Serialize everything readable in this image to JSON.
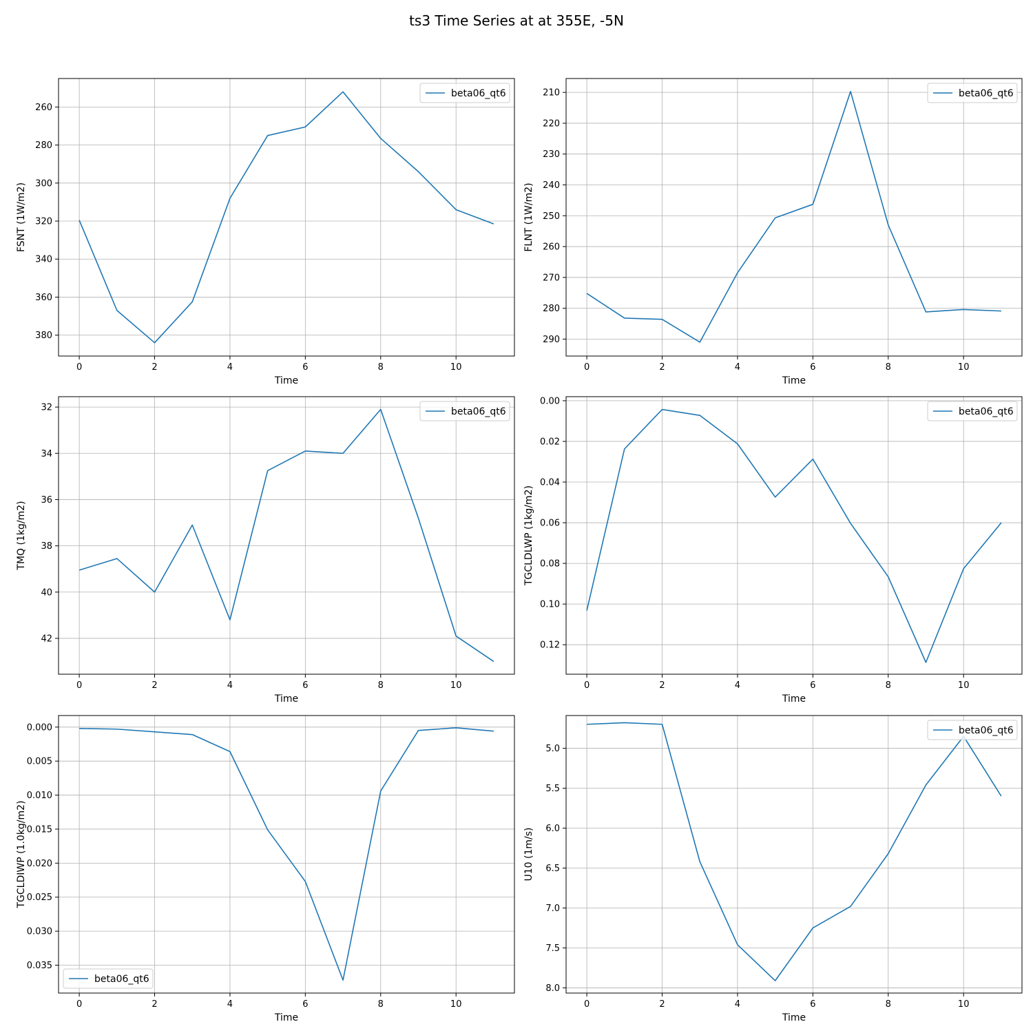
{
  "figure": {
    "suptitle": "ts3 Time Series at at 355E, -5N",
    "series_color": "#1f77b4"
  },
  "chart_data": [
    {
      "type": "line",
      "xlabel": "Time",
      "ylabel": "FSNT (1W/m2)",
      "xlim": [
        -0.55,
        11.55
      ],
      "ylim": [
        391,
        245
      ],
      "inverted_y": true,
      "grid": true,
      "legend": "upper right",
      "xticks": [
        0,
        2,
        4,
        6,
        8,
        10
      ],
      "yticks": [
        260,
        280,
        300,
        320,
        340,
        360,
        380
      ],
      "x": [
        0,
        1,
        2,
        3,
        4,
        5,
        6,
        7,
        8,
        9,
        10,
        11
      ],
      "series": [
        {
          "name": "beta06_qt6",
          "values": [
            319.5,
            367,
            384,
            362.5,
            308,
            275,
            270.5,
            252,
            276.5,
            294,
            314,
            321.5
          ]
        }
      ]
    },
    {
      "type": "line",
      "xlabel": "Time",
      "ylabel": "FLNT (1W/m2)",
      "xlim": [
        -0.55,
        11.55
      ],
      "ylim": [
        295.5,
        205.5
      ],
      "inverted_y": true,
      "grid": true,
      "legend": "upper right",
      "xticks": [
        0,
        2,
        4,
        6,
        8,
        10
      ],
      "yticks": [
        210,
        220,
        230,
        240,
        250,
        260,
        270,
        280,
        290
      ],
      "x": [
        0,
        1,
        2,
        3,
        4,
        5,
        6,
        7,
        8,
        9,
        10,
        11
      ],
      "series": [
        {
          "name": "beta06_qt6",
          "values": [
            275.2,
            283.2,
            283.6,
            291,
            268.5,
            250.7,
            246.3,
            209.7,
            253,
            281.2,
            280.4,
            280.9
          ]
        }
      ]
    },
    {
      "type": "line",
      "xlabel": "Time",
      "ylabel": "TMQ (1kg/m2)",
      "xlim": [
        -0.55,
        11.55
      ],
      "ylim": [
        43.55,
        31.55
      ],
      "inverted_y": true,
      "grid": true,
      "legend": "upper right",
      "xticks": [
        0,
        2,
        4,
        6,
        8,
        10
      ],
      "yticks": [
        32,
        34,
        36,
        38,
        40,
        42
      ],
      "x": [
        0,
        1,
        2,
        3,
        4,
        5,
        6,
        7,
        8,
        9,
        10,
        11
      ],
      "series": [
        {
          "name": "beta06_qt6",
          "values": [
            39.05,
            38.55,
            40,
            37.1,
            41.2,
            34.75,
            33.9,
            34,
            32.1,
            36.8,
            41.9,
            43
          ]
        }
      ]
    },
    {
      "type": "line",
      "xlabel": "Time",
      "ylabel": "TGCLDLWP (1kg/m2)",
      "xlim": [
        -0.55,
        11.55
      ],
      "ylim": [
        0.1345,
        -0.002
      ],
      "inverted_y": true,
      "grid": true,
      "legend": "upper right",
      "xticks": [
        0,
        2,
        4,
        6,
        8,
        10
      ],
      "yticks": [
        "0.00",
        "0.02",
        "0.04",
        "0.06",
        "0.08",
        "0.10",
        "0.12"
      ],
      "x": [
        0,
        1,
        2,
        3,
        4,
        5,
        6,
        7,
        8,
        9,
        10,
        11
      ],
      "series": [
        {
          "name": "beta06_qt6",
          "values": [
            0.1032,
            0.0237,
            0.0043,
            0.0072,
            0.0212,
            0.0474,
            0.0287,
            0.0603,
            0.0866,
            0.1287,
            0.0826,
            0.06
          ]
        }
      ]
    },
    {
      "type": "line",
      "xlabel": "Time",
      "ylabel": "TGCLDIWP (1.0kg/m2)",
      "xlim": [
        -0.55,
        11.55
      ],
      "ylim": [
        0.0391,
        -0.0017
      ],
      "inverted_y": true,
      "grid": true,
      "legend": "lower left",
      "xticks": [
        0,
        2,
        4,
        6,
        8,
        10
      ],
      "yticks": [
        "0.000",
        "0.005",
        "0.010",
        "0.015",
        "0.020",
        "0.025",
        "0.030",
        "0.035"
      ],
      "x": [
        0,
        1,
        2,
        3,
        4,
        5,
        6,
        7,
        8,
        9,
        10,
        11
      ],
      "series": [
        {
          "name": "beta06_qt6",
          "values": [
            0.0002,
            0.0003,
            0.0007,
            0.0011,
            0.0036,
            0.0151,
            0.0227,
            0.0372,
            0.0094,
            0.0005,
            0.0001,
            0.0006
          ]
        }
      ]
    },
    {
      "type": "line",
      "xlabel": "Time",
      "ylabel": "U10 (1m/s)",
      "xlim": [
        -0.55,
        11.55
      ],
      "ylim": [
        8.065,
        4.59
      ],
      "inverted_y": true,
      "grid": true,
      "legend": "upper right",
      "xticks": [
        0,
        2,
        4,
        6,
        8,
        10
      ],
      "yticks": [
        "5.0",
        "5.5",
        "6.0",
        "6.5",
        "7.0",
        "7.5",
        "8.0"
      ],
      "x": [
        0,
        1,
        2,
        3,
        4,
        5,
        6,
        7,
        8,
        9,
        10,
        11
      ],
      "series": [
        {
          "name": "beta06_qt6",
          "values": [
            4.7,
            4.68,
            4.7,
            6.42,
            7.46,
            7.91,
            7.25,
            6.98,
            6.32,
            5.46,
            4.85,
            5.6
          ]
        }
      ]
    }
  ]
}
